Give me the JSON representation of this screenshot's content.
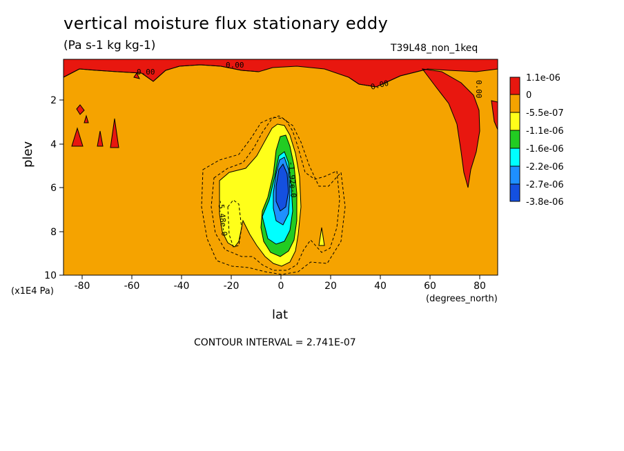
{
  "chart_data": {
    "type": "contour",
    "title": "vertical moisture flux stationary eddy",
    "subtitle": "(Pa s-1 kg kg-1)",
    "run_id": "T39L48_non_1keq",
    "xlabel": "lat",
    "x_units": "(degrees_north)",
    "ylabel": "plev",
    "y_units": "(x1E4 Pa)",
    "xlim": [
      -87,
      87
    ],
    "ylim": [
      10,
      0.3
    ],
    "x_ticks": [
      "-80",
      "-60",
      "-40",
      "-20",
      "0",
      "20",
      "40",
      "60",
      "80"
    ],
    "y_ticks": [
      "2",
      "4",
      "6",
      "8",
      "10"
    ],
    "contour_interval_text": "CONTOUR INTERVAL = 2.741E-07",
    "colorbar": {
      "labels": [
        "1.1e-06",
        "0",
        "-5.5e-07",
        "-1.1e-06",
        "-1.6e-06",
        "-2.2e-06",
        "-2.7e-06",
        "-3.8e-06"
      ],
      "colors": [
        "#e8170f",
        "#f5a300",
        "#ffff1a",
        "#22cc22",
        "#00ffff",
        "#1e90ff",
        "#1450e0"
      ]
    },
    "contour_labels": [
      "0.00",
      "0.00",
      "0.00",
      "0.00",
      "-5.48e-0",
      "-1.92e-0"
    ]
  }
}
